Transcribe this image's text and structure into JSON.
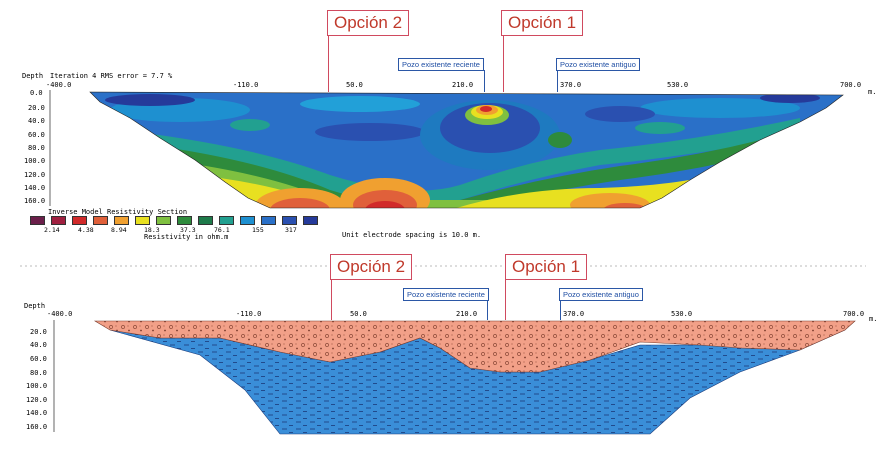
{
  "top": {
    "option2": "Opción 2",
    "option1": "Opción 1",
    "well_recent": "Pozo existente reciente",
    "well_old": "Pozo existente antiguo",
    "depth_label": "Depth",
    "iteration": "Iteration 4 RMS error = 7.7 %",
    "x_ticks": [
      "-400.0",
      "-110.0",
      "50.0",
      "210.0",
      "370.0",
      "530.0",
      "700.0"
    ],
    "y_ticks": [
      "0.0",
      "20.0",
      "40.0",
      "60.0",
      "80.0",
      "100.0",
      "120.0",
      "140.0",
      "160.0"
    ],
    "units": "m.",
    "legend_title": "Inverse Model Resistivity Section",
    "legend_values": [
      "2.14",
      "4.38",
      "8.94",
      "18.3",
      "37.3",
      "76.1",
      "155",
      "317"
    ],
    "legend_unit": "Resistivity in ohm.m",
    "electrode": "Unit electrode spacing is 10.0 m.",
    "legend_colors": [
      "#6b1f4a",
      "#a02040",
      "#d12a2a",
      "#e0603a",
      "#f0a030",
      "#e8e020",
      "#7fc040",
      "#2e8b3c",
      "#1e7a4a",
      "#22a090",
      "#1e90d0",
      "#2a70c8",
      "#2a50b0",
      "#253a9a"
    ]
  },
  "bottom": {
    "option2": "Opción 2",
    "option1": "Opción 1",
    "well_recent": "Pozo existente reciente",
    "well_old": "Pozo existente antiguo",
    "depth_label": "Depth",
    "x_ticks": [
      "-400.0",
      "-110.0",
      "50.0",
      "210.0",
      "370.0",
      "530.0",
      "700.0"
    ],
    "y_ticks": [
      "20.0",
      "40.0",
      "60.0",
      "80.0",
      "100.0",
      "120.0",
      "140.0",
      "160.0"
    ],
    "units": "m."
  },
  "colors": {
    "option_red": "#d04a5f",
    "well_blue": "#2b57a6",
    "upper_layer": "#f2a088",
    "lower_layer": "#3a8ed8"
  }
}
